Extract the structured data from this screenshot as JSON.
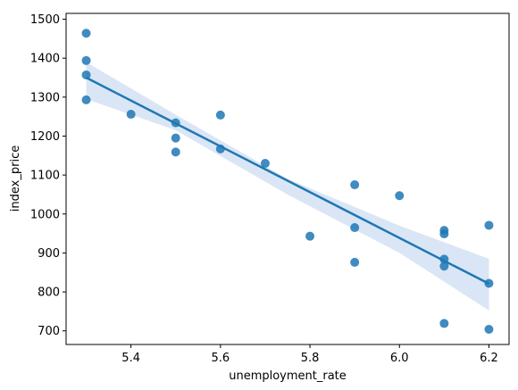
{
  "chart_data": {
    "type": "scatter",
    "xlabel": "unemployment_rate",
    "ylabel": "index_price",
    "xlim": [
      5.255,
      6.245
    ],
    "ylim": [
      665,
      1515
    ],
    "xticks": [
      5.4,
      5.6,
      5.8,
      6.0,
      6.2
    ],
    "xtick_labels": [
      "5.4",
      "5.6",
      "5.8",
      "6.0",
      "6.2"
    ],
    "yticks": [
      700,
      800,
      900,
      1000,
      1100,
      1200,
      1300,
      1400,
      1500
    ],
    "ytick_labels": [
      "700",
      "800",
      "900",
      "1000",
      "1100",
      "1200",
      "1300",
      "1400",
      "1500"
    ],
    "grid": false,
    "colors": {
      "points": "#1f77b4",
      "line": "#1f77b4",
      "band": "#aec7e8"
    },
    "points": [
      {
        "x": 5.3,
        "y": 1464
      },
      {
        "x": 5.3,
        "y": 1394
      },
      {
        "x": 5.3,
        "y": 1357
      },
      {
        "x": 5.3,
        "y": 1293
      },
      {
        "x": 5.4,
        "y": 1256
      },
      {
        "x": 5.5,
        "y": 1234
      },
      {
        "x": 5.5,
        "y": 1195
      },
      {
        "x": 5.5,
        "y": 1159
      },
      {
        "x": 5.6,
        "y": 1254
      },
      {
        "x": 5.6,
        "y": 1167
      },
      {
        "x": 5.7,
        "y": 1130
      },
      {
        "x": 5.8,
        "y": 943
      },
      {
        "x": 5.9,
        "y": 1075
      },
      {
        "x": 5.9,
        "y": 965
      },
      {
        "x": 5.9,
        "y": 876
      },
      {
        "x": 6.0,
        "y": 1047
      },
      {
        "x": 6.1,
        "y": 958
      },
      {
        "x": 6.1,
        "y": 949
      },
      {
        "x": 6.1,
        "y": 884
      },
      {
        "x": 6.1,
        "y": 866
      },
      {
        "x": 6.1,
        "y": 719
      },
      {
        "x": 6.2,
        "y": 971
      },
      {
        "x": 6.2,
        "y": 822
      },
      {
        "x": 6.2,
        "y": 704
      }
    ],
    "regression": {
      "x": [
        5.3,
        6.2
      ],
      "y": [
        1350,
        821
      ]
    },
    "confidence_band": [
      {
        "x": 5.3,
        "lower": 1295,
        "upper": 1390
      },
      {
        "x": 5.5,
        "lower": 1215,
        "upper": 1255
      },
      {
        "x": 5.75,
        "lower": 1050,
        "upper": 1090
      },
      {
        "x": 6.0,
        "lower": 900,
        "upper": 970
      },
      {
        "x": 6.2,
        "lower": 752,
        "upper": 885
      }
    ]
  }
}
